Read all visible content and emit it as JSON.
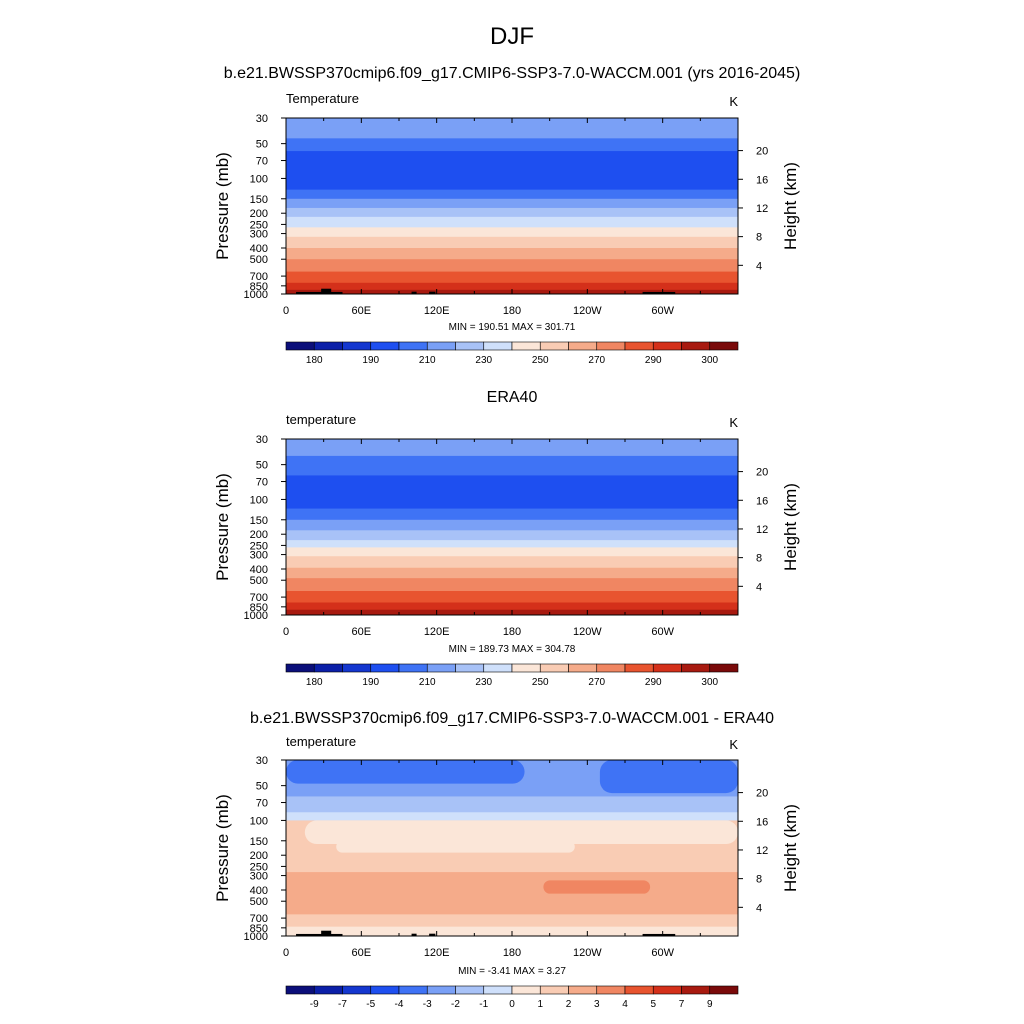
{
  "figure": {
    "title": "DJF",
    "season": "DJF"
  },
  "colors": {
    "temperature_palette": [
      "#0b0f7a",
      "#0b1fa8",
      "#1437cf",
      "#1e4ff0",
      "#3f73f5",
      "#7aa0f6",
      "#a8c2f7",
      "#cfe0fb",
      "#fbe6d8",
      "#f9ccb4",
      "#f5ab8a",
      "#f08662",
      "#e8542f",
      "#d4301a",
      "#a81a10",
      "#7a0a0a"
    ],
    "difference_palette": [
      "#0b0f7a",
      "#0b1fa8",
      "#1437cf",
      "#1e4ff0",
      "#3f73f5",
      "#7aa0f6",
      "#a8c2f7",
      "#cfe0fb",
      "#fbe6d8",
      "#f9ccb4",
      "#f5ab8a",
      "#f08662",
      "#e8542f",
      "#d4301a",
      "#a81a10",
      "#7a0a0a"
    ],
    "topography": "#000000"
  },
  "chart_data": [
    {
      "type": "heatmap",
      "title": "b.e21.BWSSP370cmip6.f09_g17.CMIP6-SSP3-7.0-WACCM.001 (yrs 2016-2045)",
      "left_label": "Temperature",
      "right_label": "K",
      "ylabel": "Pressure (mb)",
      "ylabel_right": "Height (km)",
      "xlabel": "",
      "x_ticks": [
        "0",
        "60E",
        "120E",
        "180",
        "120W",
        "60W"
      ],
      "x_tick_values": [
        0,
        60,
        120,
        180,
        240,
        300
      ],
      "xlim": [
        0,
        360
      ],
      "y_ticks": [
        "30",
        "50",
        "70",
        "100",
        "150",
        "200",
        "250",
        "300",
        "400",
        "500",
        "700",
        "850",
        "1000"
      ],
      "y_tick_values": [
        30,
        50,
        70,
        100,
        150,
        200,
        250,
        300,
        400,
        500,
        700,
        850,
        1000
      ],
      "ylim": [
        30,
        1000
      ],
      "y_scale": "log",
      "height_ticks": [
        "4",
        "8",
        "12",
        "16",
        "20"
      ],
      "height_tick_values": [
        4,
        8,
        12,
        16,
        20
      ],
      "stats": "MIN = 190.51  MAX = 301.71",
      "min": 190.51,
      "max": 301.71,
      "colorbar_labels": [
        "180",
        "190",
        "210",
        "230",
        "250",
        "270",
        "290",
        "300"
      ],
      "colorbar_label_positions": [
        1,
        3,
        5,
        7,
        9,
        11,
        13,
        15
      ],
      "levels": [
        30,
        50,
        70,
        100,
        150,
        200,
        250,
        300,
        400,
        500,
        700,
        850,
        1000
      ],
      "bands": [
        {
          "p_top": 30,
          "p_bot": 45,
          "color_index": 5
        },
        {
          "p_top": 45,
          "p_bot": 58,
          "color_index": 4
        },
        {
          "p_top": 58,
          "p_bot": 125,
          "color_index": 3
        },
        {
          "p_top": 125,
          "p_bot": 150,
          "color_index": 4
        },
        {
          "p_top": 150,
          "p_bot": 180,
          "color_index": 5
        },
        {
          "p_top": 180,
          "p_bot": 215,
          "color_index": 6
        },
        {
          "p_top": 215,
          "p_bot": 265,
          "color_index": 7
        },
        {
          "p_top": 265,
          "p_bot": 320,
          "color_index": 8
        },
        {
          "p_top": 320,
          "p_bot": 400,
          "color_index": 9
        },
        {
          "p_top": 400,
          "p_bot": 500,
          "color_index": 10
        },
        {
          "p_top": 500,
          "p_bot": 640,
          "color_index": 11
        },
        {
          "p_top": 640,
          "p_bot": 800,
          "color_index": 12
        },
        {
          "p_top": 800,
          "p_bot": 920,
          "color_index": 13
        },
        {
          "p_top": 920,
          "p_bot": 1000,
          "color_index": 14
        }
      ],
      "topography": [
        {
          "lon_start": 8,
          "lon_end": 45,
          "p_top": 960
        },
        {
          "lon_start": 28,
          "lon_end": 36,
          "p_top": 900
        },
        {
          "lon_start": 100,
          "lon_end": 104,
          "p_top": 955
        },
        {
          "lon_start": 114,
          "lon_end": 119,
          "p_top": 955
        },
        {
          "lon_start": 284,
          "lon_end": 310,
          "p_top": 960
        }
      ]
    },
    {
      "type": "heatmap",
      "title": "ERA40",
      "left_label": "temperature",
      "right_label": "K",
      "ylabel": "Pressure (mb)",
      "ylabel_right": "Height (km)",
      "xlabel": "",
      "x_ticks": [
        "0",
        "60E",
        "120E",
        "180",
        "120W",
        "60W"
      ],
      "x_tick_values": [
        0,
        60,
        120,
        180,
        240,
        300
      ],
      "xlim": [
        0,
        360
      ],
      "y_ticks": [
        "30",
        "50",
        "70",
        "100",
        "150",
        "200",
        "250",
        "300",
        "400",
        "500",
        "700",
        "850",
        "1000"
      ],
      "y_tick_values": [
        30,
        50,
        70,
        100,
        150,
        200,
        250,
        300,
        400,
        500,
        700,
        850,
        1000
      ],
      "ylim": [
        30,
        1000
      ],
      "y_scale": "log",
      "height_ticks": [
        "4",
        "8",
        "12",
        "16",
        "20"
      ],
      "height_tick_values": [
        4,
        8,
        12,
        16,
        20
      ],
      "stats": "MIN = 189.73  MAX = 304.78",
      "min": 189.73,
      "max": 304.78,
      "colorbar_labels": [
        "180",
        "190",
        "210",
        "230",
        "250",
        "270",
        "290",
        "300"
      ],
      "colorbar_label_positions": [
        1,
        3,
        5,
        7,
        9,
        11,
        13,
        15
      ],
      "bands": [
        {
          "p_top": 30,
          "p_bot": 42,
          "color_index": 5
        },
        {
          "p_top": 42,
          "p_bot": 62,
          "color_index": 4
        },
        {
          "p_top": 62,
          "p_bot": 120,
          "color_index": 3
        },
        {
          "p_top": 120,
          "p_bot": 150,
          "color_index": 4
        },
        {
          "p_top": 150,
          "p_bot": 185,
          "color_index": 5
        },
        {
          "p_top": 185,
          "p_bot": 225,
          "color_index": 6
        },
        {
          "p_top": 225,
          "p_bot": 260,
          "color_index": 7
        },
        {
          "p_top": 260,
          "p_bot": 310,
          "color_index": 8
        },
        {
          "p_top": 310,
          "p_bot": 390,
          "color_index": 9
        },
        {
          "p_top": 390,
          "p_bot": 480,
          "color_index": 10
        },
        {
          "p_top": 480,
          "p_bot": 620,
          "color_index": 11
        },
        {
          "p_top": 620,
          "p_bot": 780,
          "color_index": 12
        },
        {
          "p_top": 780,
          "p_bot": 900,
          "color_index": 13
        },
        {
          "p_top": 900,
          "p_bot": 1000,
          "color_index": 14
        }
      ],
      "topography": []
    },
    {
      "type": "heatmap",
      "title": "b.e21.BWSSP370cmip6.f09_g17.CMIP6-SSP3-7.0-WACCM.001 - ERA40",
      "left_label": "temperature",
      "right_label": "K",
      "ylabel": "Pressure (mb)",
      "ylabel_right": "Height (km)",
      "xlabel": "",
      "x_ticks": [
        "0",
        "60E",
        "120E",
        "180",
        "120W",
        "60W"
      ],
      "x_tick_values": [
        0,
        60,
        120,
        180,
        240,
        300
      ],
      "xlim": [
        0,
        360
      ],
      "y_ticks": [
        "30",
        "50",
        "70",
        "100",
        "150",
        "200",
        "250",
        "300",
        "400",
        "500",
        "700",
        "850",
        "1000"
      ],
      "y_tick_values": [
        30,
        50,
        70,
        100,
        150,
        200,
        250,
        300,
        400,
        500,
        700,
        850,
        1000
      ],
      "ylim": [
        30,
        1000
      ],
      "y_scale": "log",
      "height_ticks": [
        "4",
        "8",
        "12",
        "16",
        "20"
      ],
      "height_tick_values": [
        4,
        8,
        12,
        16,
        20
      ],
      "stats": "MIN =  -3.41  MAX =   3.27",
      "min": -3.41,
      "max": 3.27,
      "colorbar_labels": [
        "-9",
        "-7",
        "-5",
        "-4",
        "-3",
        "-2",
        "-1",
        "0",
        "1",
        "2",
        "3",
        "4",
        "5",
        "7",
        "9"
      ],
      "colorbar_label_positions": [
        1,
        2,
        3,
        4,
        5,
        6,
        7,
        8,
        9,
        10,
        11,
        12,
        13,
        14,
        15
      ],
      "bands": [
        {
          "p_top": 30,
          "p_bot": 62,
          "color_index": 5
        },
        {
          "p_top": 62,
          "p_bot": 85,
          "color_index": 6
        },
        {
          "p_top": 85,
          "p_bot": 100,
          "color_index": 7
        },
        {
          "p_top": 100,
          "p_bot": 175,
          "color_index": 9
        },
        {
          "p_top": 175,
          "p_bot": 280,
          "color_index": 9
        },
        {
          "p_top": 280,
          "p_bot": 650,
          "color_index": 10
        },
        {
          "p_top": 650,
          "p_bot": 830,
          "color_index": 9
        },
        {
          "p_top": 830,
          "p_bot": 1000,
          "color_index": 8
        }
      ],
      "patches": [
        {
          "lon_start": 0,
          "lon_end": 190,
          "p_top": 30,
          "p_bot": 48,
          "color_index": 4
        },
        {
          "lon_start": 250,
          "lon_end": 360,
          "p_top": 30,
          "p_bot": 58,
          "color_index": 4
        },
        {
          "lon_start": 15,
          "lon_end": 360,
          "p_top": 100,
          "p_bot": 160,
          "color_index": 8
        },
        {
          "lon_start": 40,
          "lon_end": 230,
          "p_top": 150,
          "p_bot": 190,
          "color_index": 8
        },
        {
          "lon_start": 205,
          "lon_end": 290,
          "p_top": 330,
          "p_bot": 430,
          "color_index": 11
        }
      ],
      "topography": [
        {
          "lon_start": 8,
          "lon_end": 45,
          "p_top": 960
        },
        {
          "lon_start": 28,
          "lon_end": 36,
          "p_top": 900
        },
        {
          "lon_start": 100,
          "lon_end": 104,
          "p_top": 955
        },
        {
          "lon_start": 114,
          "lon_end": 119,
          "p_top": 955
        },
        {
          "lon_start": 284,
          "lon_end": 310,
          "p_top": 960
        }
      ]
    }
  ]
}
